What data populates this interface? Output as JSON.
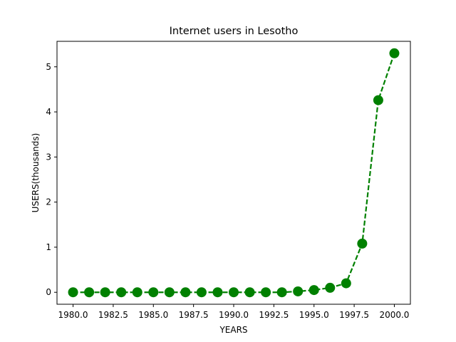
{
  "chart_data": {
    "type": "line",
    "title": "Internet users in Lesotho",
    "xlabel": "YEARS",
    "ylabel": "USERS(thousands)",
    "x": [
      1980,
      1981,
      1982,
      1983,
      1984,
      1985,
      1986,
      1987,
      1988,
      1989,
      1990,
      1991,
      1992,
      1993,
      1994,
      1995,
      1996,
      1997,
      1998,
      1999,
      2000
    ],
    "series": [
      {
        "color": "#008000",
        "line_style": "dashed",
        "marker": "circle",
        "values": [
          0,
          0,
          0,
          0,
          0,
          0,
          0,
          0,
          0,
          0,
          0,
          0,
          0,
          0,
          0.02,
          0.05,
          0.1,
          0.2,
          1.08,
          4.26,
          5.3
        ]
      }
    ],
    "xlim": [
      1979,
      2001
    ],
    "ylim": [
      -0.265,
      5.565
    ],
    "x_ticks": [
      1980.0,
      1982.5,
      1985.0,
      1987.5,
      1990.0,
      1992.5,
      1995.0,
      1997.5,
      2000.0
    ],
    "x_tick_labels": [
      "1980.0",
      "1982.5",
      "1985.0",
      "1987.5",
      "1990.0",
      "1992.5",
      "1995.0",
      "1997.5",
      "2000.0"
    ],
    "y_ticks": [
      0,
      1,
      2,
      3,
      4,
      5
    ],
    "y_tick_labels": [
      "0",
      "1",
      "2",
      "3",
      "4",
      "5"
    ],
    "grid": false,
    "legend": "none"
  }
}
